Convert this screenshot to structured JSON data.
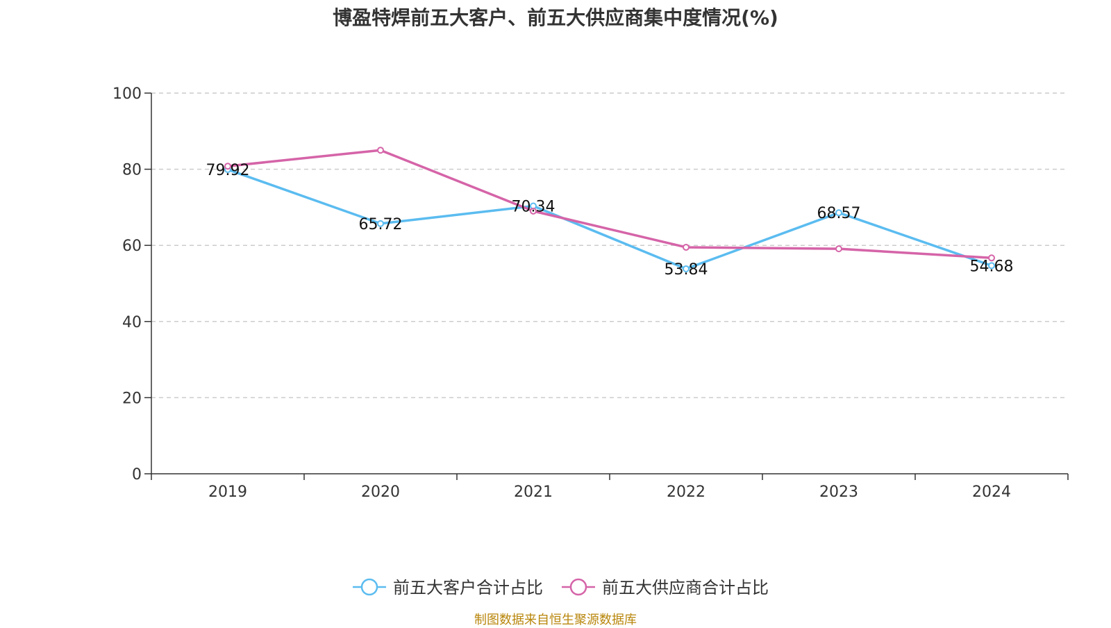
{
  "chart_data": {
    "type": "line",
    "title": "博盈特焊前五大客户、前五大供应商集中度情况(%)",
    "categories": [
      "2019",
      "2020",
      "2021",
      "2022",
      "2023",
      "2024"
    ],
    "ylim": [
      0,
      100
    ],
    "yticks": [
      0,
      20,
      40,
      60,
      80,
      100
    ],
    "grid": true,
    "legend_position": "bottom-center",
    "series": [
      {
        "name": "前五大客户合计占比",
        "color": "#5bbcf0",
        "values": [
          79.92,
          65.72,
          70.34,
          53.84,
          68.57,
          54.68
        ],
        "labels": [
          "79.92",
          "65.72",
          "70.34",
          "53.84",
          "68.57",
          "54.68"
        ]
      },
      {
        "name": "前五大供应商合计占比",
        "color": "#d564a8",
        "values": [
          80.8,
          85.0,
          69.0,
          59.5,
          59.1,
          56.7
        ]
      }
    ]
  },
  "source": "制图数据来自恒生聚源数据库"
}
